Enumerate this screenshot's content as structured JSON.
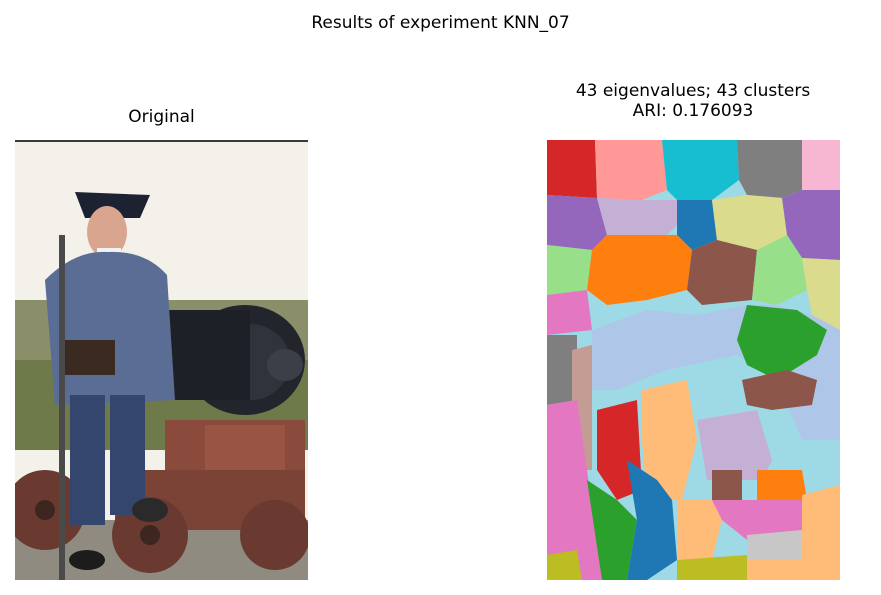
{
  "figure": {
    "suptitle": "Results of experiment KNN_07",
    "left_panel": {
      "title": "Original"
    },
    "right_panel": {
      "title_line1": "43 eigenvalues; 43 clusters",
      "title_line2": "ARI: 0.176093"
    }
  },
  "palette": [
    "#d62728",
    "#ff9896",
    "#17becf",
    "#7f7f7f",
    "#f7b6d2",
    "#9467bd",
    "#c5b0d5",
    "#1f77b4",
    "#dbdb8d",
    "#98df8a",
    "#8c564b",
    "#ff7f0e",
    "#2ca02c",
    "#aec7e8",
    "#9edae5",
    "#e377c2",
    "#ffbb78",
    "#c7c7c7",
    "#bcbd22",
    "#c49c94"
  ]
}
